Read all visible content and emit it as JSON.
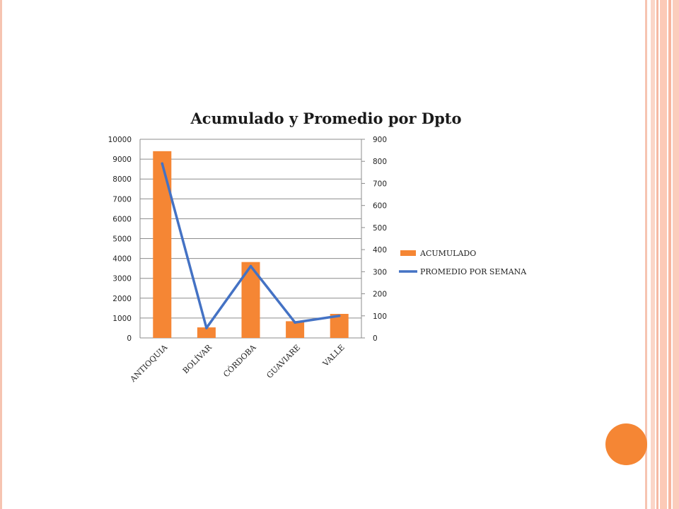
{
  "theme": {
    "bar_color": "#f58634",
    "line_color": "#4472c4",
    "accent_circle_color": "#f58634"
  },
  "chart_data": {
    "type": "bar",
    "title": "Acumulado y Promedio por Dpto",
    "categories": [
      "ANTIOQUIA",
      "BOLÍVAR",
      "CÓRDOBA",
      "GUAVIARE",
      "VALLE"
    ],
    "series": [
      {
        "name": "ACUMULADO",
        "type": "bar",
        "axis": "left",
        "values": [
          9400,
          530,
          3820,
          840,
          1210
        ]
      },
      {
        "name": "PROMEDIO POR SEMANA",
        "type": "line",
        "axis": "right",
        "values": [
          790,
          45,
          325,
          70,
          100
        ]
      }
    ],
    "y_left": {
      "min": 0,
      "max": 10000,
      "ticks": [
        "0",
        "1000",
        "2000",
        "3000",
        "4000",
        "5000",
        "6000",
        "7000",
        "8000",
        "9000",
        "10000"
      ]
    },
    "y_right": {
      "min": 0,
      "max": 900,
      "ticks": [
        "0",
        "100",
        "200",
        "300",
        "400",
        "500",
        "600",
        "700",
        "800",
        "900"
      ]
    },
    "grid": true,
    "legend": "right"
  }
}
